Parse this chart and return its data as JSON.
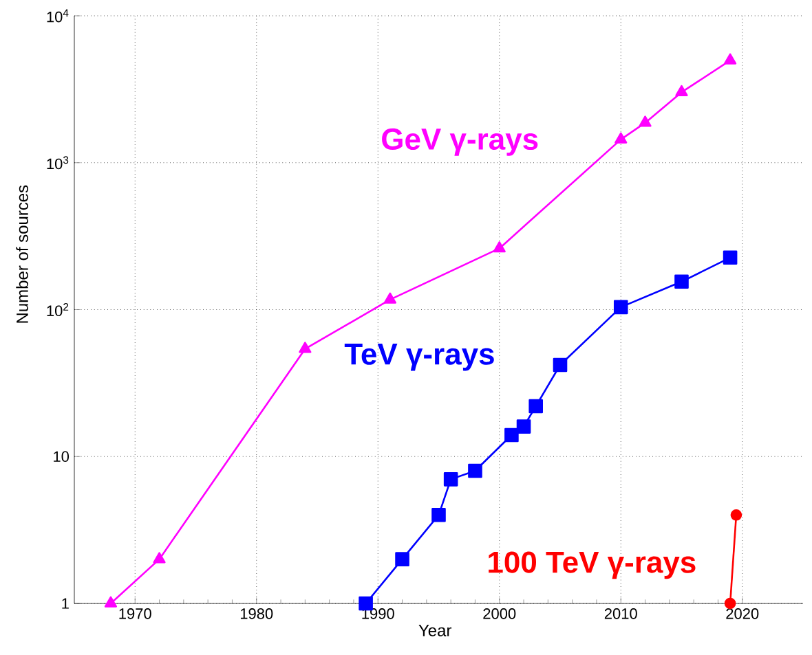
{
  "chart_data": {
    "type": "line",
    "xlabel": "Year",
    "ylabel": "Number of sources",
    "log": "y",
    "grid": true,
    "line_style": "solid",
    "xlim": [
      1965,
      2025
    ],
    "xticks": [
      1970,
      1980,
      1990,
      2000,
      2010,
      2020
    ],
    "ylim": [
      1,
      10000
    ],
    "yticks": [
      1,
      10,
      {
        "value": 100,
        "label": "10$^{2}$"
      },
      {
        "value": 1000,
        "label": "10$^{3}$"
      },
      {
        "value": 10000,
        "label": "10$^{4}$"
      }
    ],
    "series": [
      {
        "name": "GeV  γ-rays",
        "color": "#ff00ff",
        "marker": "triangle",
        "x": [
          1968,
          1972,
          1984,
          1991,
          2000,
          2010,
          2012,
          2015,
          2019
        ],
        "values": [
          1,
          2,
          54,
          117,
          261,
          1440,
          1870,
          3020,
          4970
        ]
      },
      {
        "name": "TeV  γ-rays",
        "color": "#0000ff",
        "marker": "square",
        "x": [
          1989,
          1992,
          1995,
          1996,
          1998,
          2001,
          2002,
          2003,
          2005,
          2010,
          2015,
          2019
        ],
        "values": [
          1,
          2,
          4,
          7,
          8,
          14,
          16,
          22,
          42,
          104,
          155,
          226
        ]
      },
      {
        "name": "100 TeV  γ-rays",
        "color": "#ff0000",
        "marker": "circle",
        "x": [
          2019,
          2019.5
        ],
        "values": [
          1,
          4
        ]
      }
    ]
  }
}
